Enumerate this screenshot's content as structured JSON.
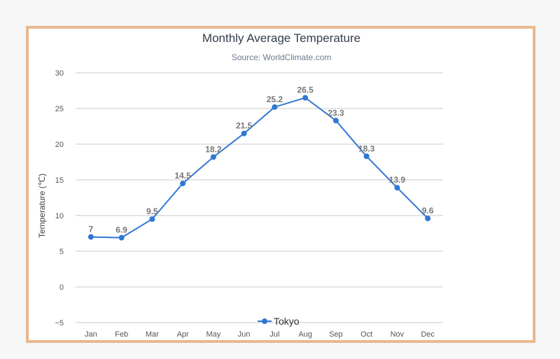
{
  "chart_data": {
    "type": "line",
    "title": "Monthly Average Temperature",
    "subtitle": "Source: WorldClimate.com",
    "ylabel": "Temperature (℃)",
    "xlabel": "",
    "categories": [
      "Jan",
      "Feb",
      "Mar",
      "Apr",
      "May",
      "Jun",
      "Jul",
      "Aug",
      "Sep",
      "Oct",
      "Nov",
      "Dec"
    ],
    "series": [
      {
        "name": "Tokyo",
        "values": [
          7,
          6.9,
          9.5,
          14.5,
          18.2,
          21.5,
          25.2,
          26.5,
          23.3,
          18.3,
          13.9,
          9.6
        ]
      }
    ],
    "ylim": [
      -5,
      30
    ],
    "yticks": [
      30,
      25,
      20,
      15,
      10,
      5,
      0,
      -5
    ],
    "grid": true,
    "legend": "bottom-center",
    "data_labels": true,
    "colors": {
      "series": "#3077d3",
      "frame": "#e8b98f",
      "grid": "#c8c8c8"
    }
  }
}
